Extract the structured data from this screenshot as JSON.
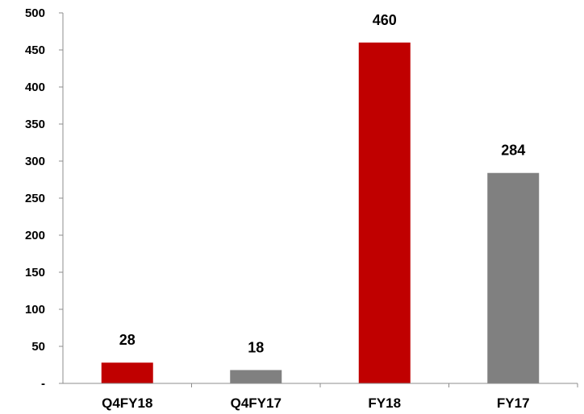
{
  "chart_data": {
    "type": "bar",
    "categories": [
      "Q4FY18",
      "Q4FY17",
      "FY18",
      "FY17"
    ],
    "values": [
      28,
      18,
      460,
      284
    ],
    "data_labels": [
      "28",
      "18",
      "460",
      "284"
    ],
    "colors": [
      "#c00000",
      "#808080",
      "#c00000",
      "#808080"
    ],
    "ylim": [
      0,
      500
    ],
    "yticks": [
      0,
      50,
      100,
      150,
      200,
      250,
      300,
      350,
      400,
      450,
      500
    ],
    "ytick_labels": [
      "-",
      "50",
      "100",
      "150",
      "200",
      "250",
      "300",
      "350",
      "400",
      "450",
      "500"
    ],
    "title": "",
    "xlabel": "",
    "ylabel": "",
    "grid": false,
    "legend": "none",
    "axis_color": "#8c8c8c"
  }
}
